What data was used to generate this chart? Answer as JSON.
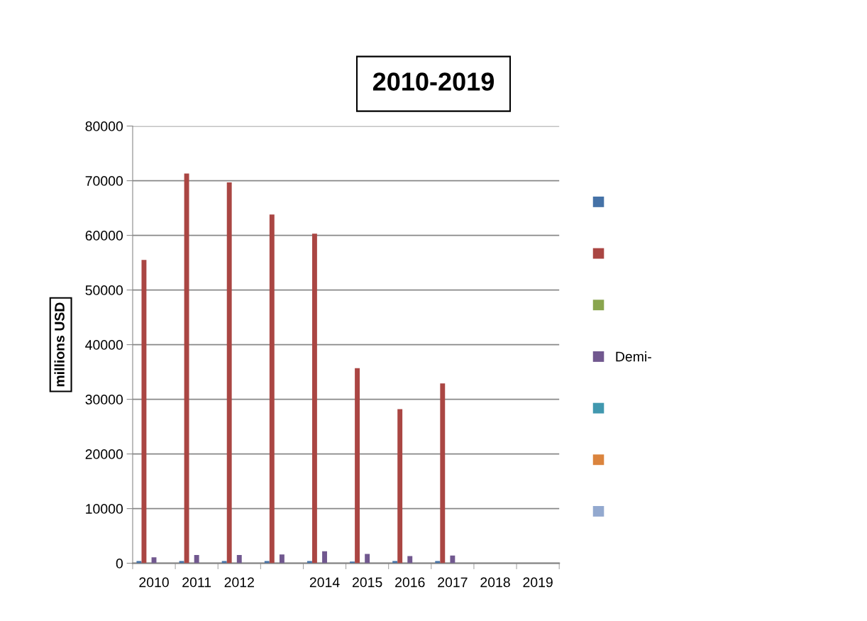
{
  "chart_data": {
    "type": "bar",
    "title": "2010-2019",
    "ylabel": "millions USD",
    "categories": [
      "2010",
      "2011",
      "2012",
      null,
      "2014",
      "2015",
      "2016",
      "2017",
      "2018",
      "2019"
    ],
    "series": [
      {
        "color": "#4572a7",
        "values": [
          400,
          400,
          400,
          400,
          400,
          300,
          400,
          400,
          null,
          null
        ]
      },
      {
        "color": "#aa4643",
        "values": [
          55500,
          71300,
          69700,
          63800,
          60300,
          35700,
          28200,
          32900,
          null,
          null
        ]
      },
      {
        "color": "#89a54e",
        "values": [
          0,
          0,
          0,
          0,
          0,
          0,
          0,
          0,
          null,
          null
        ]
      },
      {
        "name": "Demi-",
        "color": "#71588f",
        "values": [
          1100,
          1500,
          1500,
          1600,
          2200,
          1700,
          1300,
          1400,
          null,
          null
        ]
      },
      {
        "color": "#4198af",
        "values": [
          0,
          0,
          0,
          0,
          0,
          0,
          0,
          0,
          null,
          null
        ]
      },
      {
        "color": "#db843d",
        "values": [
          0,
          0,
          0,
          0,
          0,
          0,
          0,
          0,
          null,
          null
        ]
      },
      {
        "color": "#93a9cf",
        "values": [
          0,
          0,
          0,
          0,
          0,
          0,
          0,
          0,
          null,
          null
        ]
      }
    ],
    "ylim": [
      0,
      80000
    ],
    "yticks": [
      0,
      10000,
      20000,
      30000,
      40000,
      50000,
      60000,
      70000,
      80000
    ],
    "grid": "y",
    "legend": "right"
  }
}
